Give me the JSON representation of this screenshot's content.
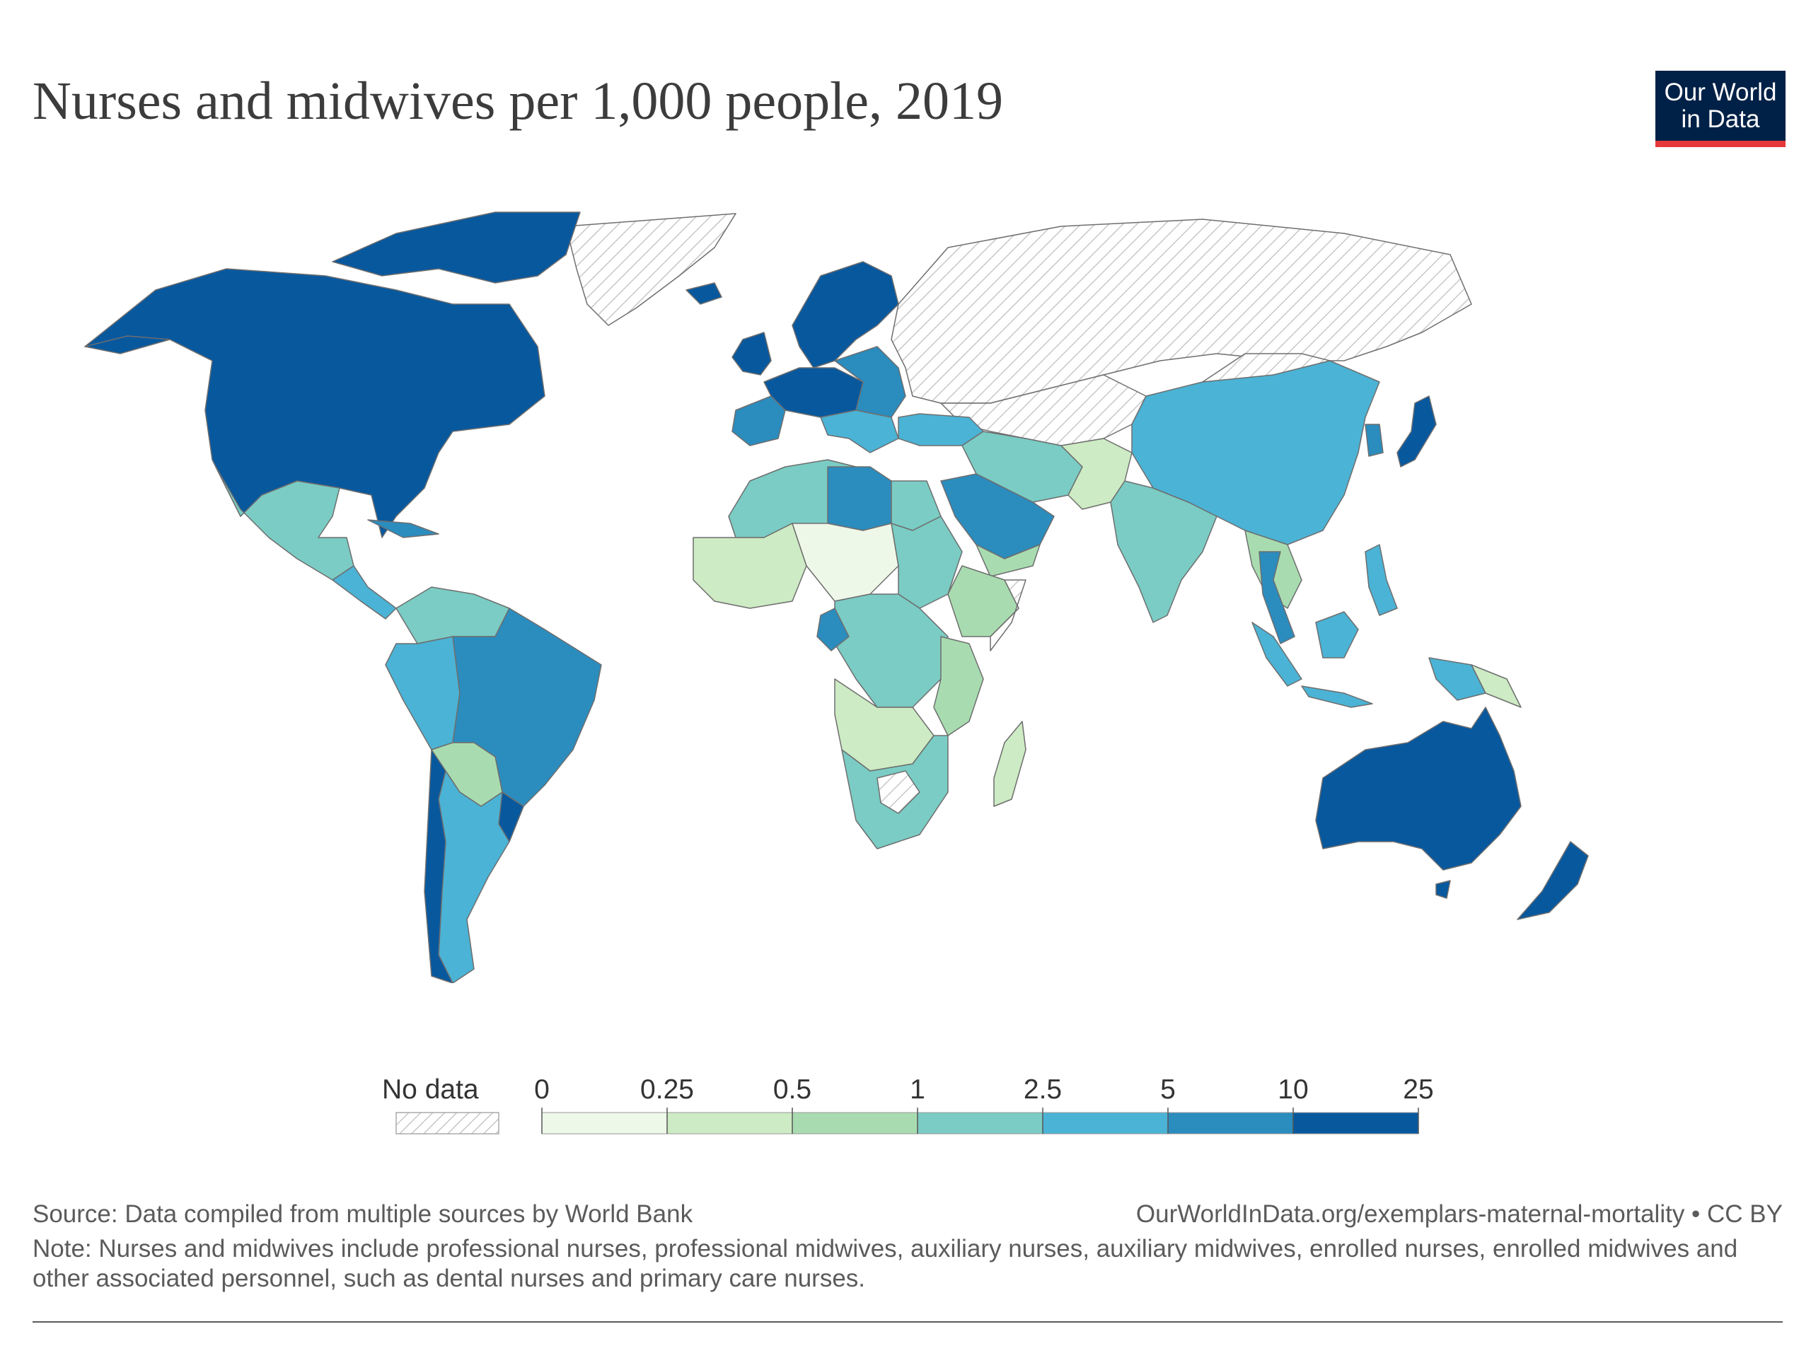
{
  "title": "Nurses and midwives per 1,000 people, 2019",
  "logo": {
    "line1": "Our World",
    "line2": "in Data"
  },
  "legend": {
    "no_data_label": "No data",
    "thresholds": [
      "0",
      "0.25",
      "0.5",
      "1",
      "2.5",
      "5",
      "10",
      "25"
    ],
    "colors": [
      "#eef8e8",
      "#cdebc4",
      "#a8dcb0",
      "#7accc4",
      "#4bb3d5",
      "#2b8cbe",
      "#08589e"
    ],
    "no_data_color": "#ffffff",
    "no_data_hatch": "#c8c8c8"
  },
  "map_colors": {
    "highest": "#08589e",
    "high": "#2b8cbe",
    "mid_high": "#4bb3d5",
    "mid": "#7accc4",
    "low_mid": "#a8dcb0",
    "low": "#cdebc4",
    "lowest": "#eef8e8",
    "border": "#6e6e6e"
  },
  "footer": {
    "source": "Source: Data compiled from multiple sources by World Bank",
    "url": "OurWorldInData.org/exemplars-maternal-mortality • CC BY",
    "note": "Note: Nurses and midwives include professional nurses, professional midwives, auxiliary nurses, auxiliary midwives, enrolled nurses, enrolled midwives and other associated personnel, such as dental nurses and primary care nurses."
  }
}
